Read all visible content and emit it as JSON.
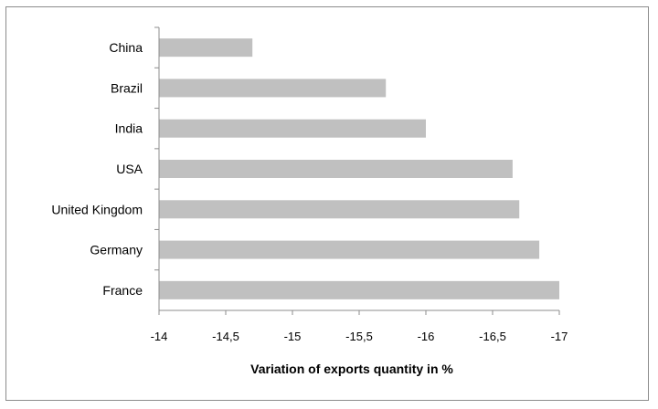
{
  "chart_data": {
    "type": "bar",
    "orientation": "horizontal",
    "categories": [
      "China",
      "Brazil",
      "India",
      "USA",
      "United Kingdom",
      "Germany",
      "France"
    ],
    "values": [
      -14.7,
      -15.7,
      -16.0,
      -16.65,
      -16.7,
      -16.85,
      -17.0
    ],
    "xlabel": "Variation of exports quantity in %",
    "ylabel": "",
    "title": "",
    "xlim": [
      -14,
      -17
    ],
    "x_axis_reversed": true,
    "xticks": [
      -14,
      -14.5,
      -15,
      -15.5,
      -16,
      -16.5,
      -17
    ],
    "xtick_labels": [
      "-14",
      "-14,5",
      "-15",
      "-15,5",
      "-16",
      "-16,5",
      "-17"
    ],
    "grid": false,
    "legend": "none",
    "bar_color": "#c0c0c0",
    "frame_color": "#8c8c8c"
  }
}
